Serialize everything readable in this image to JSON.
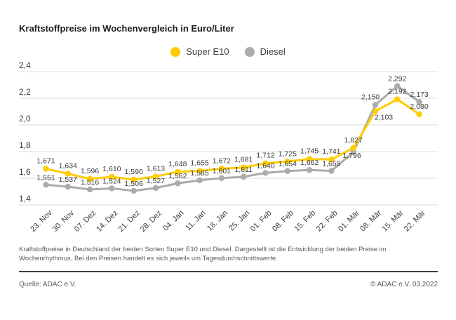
{
  "title": "Kraftstoffpreise im Wochenvergleich in Euro/Liter",
  "legend": [
    {
      "label": "Super E10",
      "color": "#FFCC00"
    },
    {
      "label": "Diesel",
      "color": "#ABABAB"
    }
  ],
  "chart_data": {
    "type": "line",
    "title": "Kraftstoffpreise im Wochenvergleich in Euro/Liter",
    "xlabel": "",
    "ylabel": "Euro/Liter",
    "categories": [
      "23. Nov",
      "30. Nov",
      "07. Dez",
      "14. Dez",
      "21. Dez",
      "28. Dez",
      "04. Jan",
      "11. Jan",
      "18. Jan",
      "25. Jan",
      "01. Feb",
      "08. Feb",
      "15. Feb",
      "22. Feb",
      "01. Mär",
      "08. Mär",
      "15. Mär",
      "22. Mär"
    ],
    "series": [
      {
        "name": "Super E10",
        "color": "#FFCC00",
        "values": [
          1.671,
          1.634,
          1.596,
          1.61,
          1.59,
          1.613,
          1.648,
          1.655,
          1.672,
          1.681,
          1.712,
          1.725,
          1.745,
          1.741,
          1.827,
          2.103,
          2.192,
          2.08
        ]
      },
      {
        "name": "Diesel",
        "color": "#ABABAB",
        "values": [
          1.551,
          1.537,
          1.516,
          1.524,
          1.506,
          1.527,
          1.562,
          1.585,
          1.601,
          1.611,
          1.64,
          1.654,
          1.662,
          1.655,
          1.796,
          2.15,
          2.292,
          2.173
        ]
      }
    ],
    "ylim": [
      1.4,
      2.4
    ],
    "yticks": [
      2.4,
      2.2,
      2.0,
      1.8,
      1.6,
      1.4
    ],
    "grid": true,
    "legend_position": "top-center",
    "decimal_separator": ",",
    "point_labels_visible": true,
    "grid_color": "#dcdcdc",
    "label_color": "#3c3c3c"
  },
  "footnote": "Kraftstoffpreise in Deutschland der beiden Sorten Super E10 und Diesel. Dargestellt ist die Entwicklung der beiden Preise im Wochenrhythmus. Bei den Preisen handelt es sich jeweils um Tagesdurchschnittswerte.",
  "source": {
    "left": "Quelle: ADAC e.V.",
    "right": "© ADAC e.V. 03.2022"
  }
}
